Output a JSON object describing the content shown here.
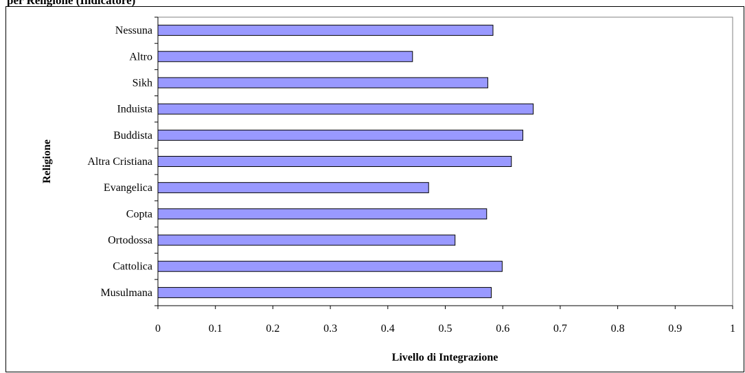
{
  "chart_data": {
    "type": "bar",
    "orientation": "horizontal",
    "title": "per Religione (Indicatore)",
    "xlabel": "Livello di Integrazione",
    "ylabel": "Religione",
    "xlim": [
      0,
      1
    ],
    "x_ticks": [
      "0",
      "0.1",
      "0.2",
      "0.3",
      "0.4",
      "0.5",
      "0.6",
      "0.7",
      "0.8",
      "0.9",
      "1"
    ],
    "categories": [
      "Nessuna",
      "Altro",
      "Sikh",
      "Induista",
      "Buddista",
      "Altra Cristiana",
      "Evangelica",
      "Copta",
      "Ortodossa",
      "Cattolica",
      "Musulmana"
    ],
    "values": [
      0.583,
      0.443,
      0.574,
      0.653,
      0.635,
      0.615,
      0.471,
      0.572,
      0.517,
      0.599,
      0.58
    ],
    "bar_color": "#9999ff",
    "grid": false,
    "legend": "none"
  }
}
